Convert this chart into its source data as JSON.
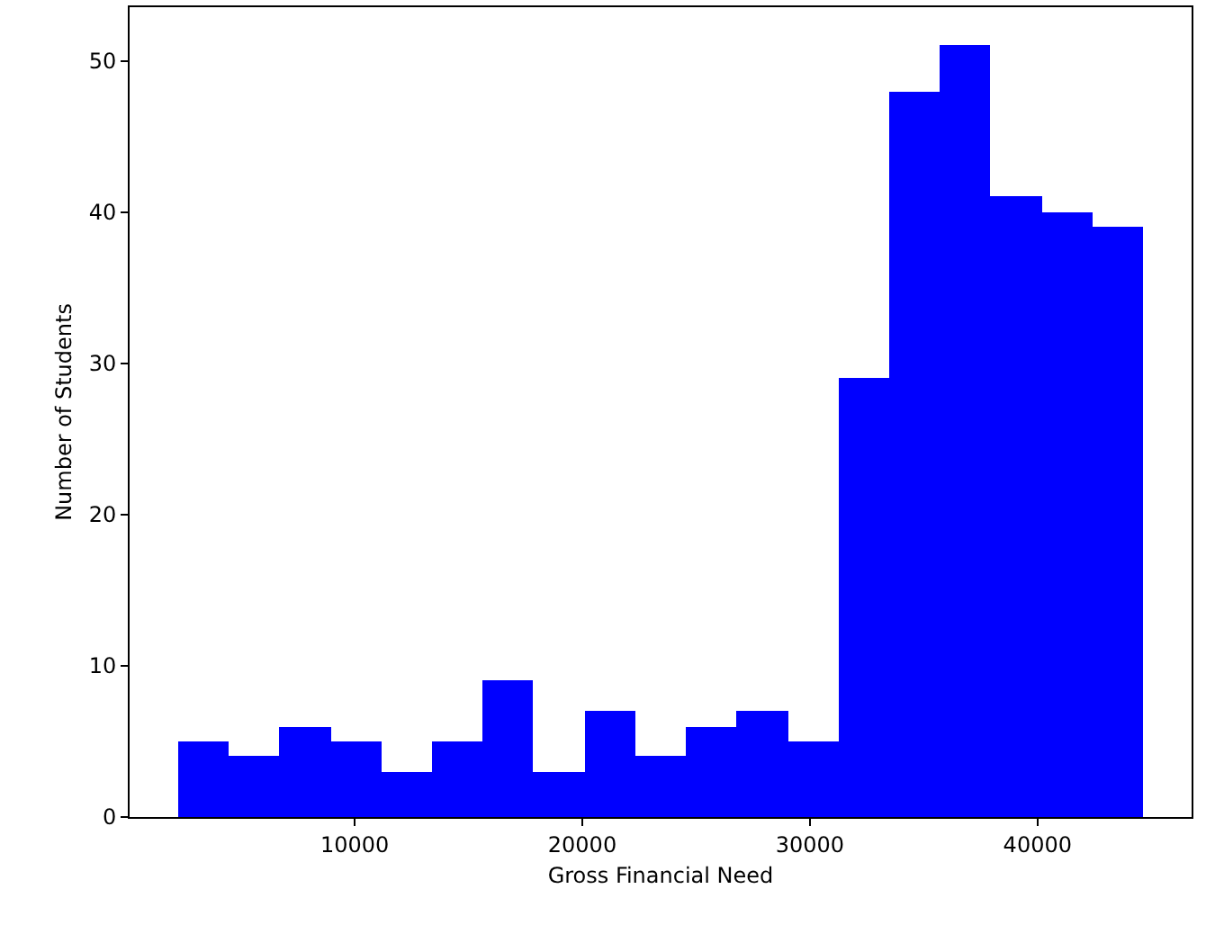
{
  "chart_data": {
    "type": "histogram",
    "xlabel": "Gross Financial Need",
    "ylabel": "Number of Students",
    "bins": [
      2230,
      4460,
      6700,
      8930,
      11160,
      13390,
      15630,
      17860,
      20090,
      22320,
      24560,
      26790,
      29020,
      31250,
      33490,
      35720,
      37950,
      40180,
      42420,
      44650
    ],
    "values": [
      5,
      4,
      6,
      5,
      3,
      5,
      9,
      3,
      7,
      4,
      6,
      7,
      5,
      29,
      48,
      51,
      41,
      40,
      39
    ],
    "color": "#0000ff",
    "xlim": [
      110,
      46770
    ],
    "xticks": [
      10000,
      20000,
      30000,
      40000
    ],
    "ylim": [
      0,
      53.55
    ],
    "yticks": [
      0,
      10,
      20,
      30,
      40,
      50
    ]
  }
}
